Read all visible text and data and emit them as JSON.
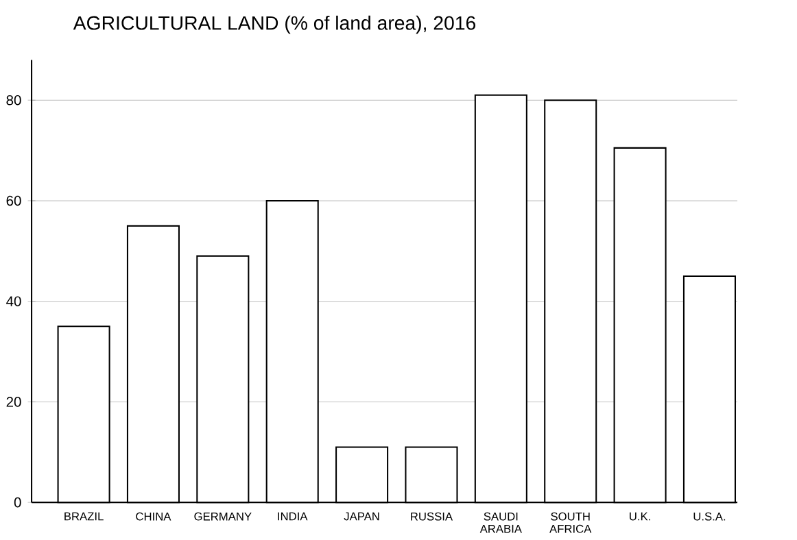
{
  "chart_data": {
    "type": "bar",
    "title": "AGRICULTURAL LAND (% of land area), 2016",
    "categories": [
      "BRAZIL",
      "CHINA",
      "GERMANY",
      "INDIA",
      "JAPAN",
      "RUSSIA",
      "SAUDI ARABIA",
      "SOUTH AFRICA",
      "U.K.",
      "U.S.A."
    ],
    "values": [
      35,
      55,
      49,
      60,
      11,
      11,
      81,
      80,
      70.5,
      45
    ],
    "color": "#ffffff",
    "ylim": [
      0,
      88
    ],
    "yticks": [
      0,
      20,
      40,
      60,
      80
    ],
    "grid": "y"
  }
}
